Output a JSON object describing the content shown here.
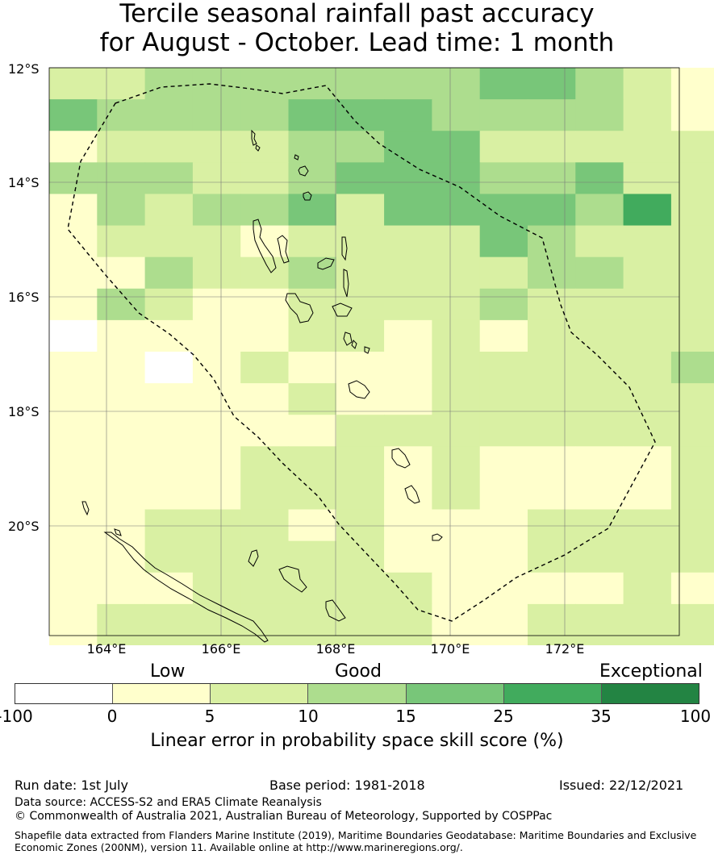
{
  "title_line1": "Tercile seasonal rainfall past accuracy",
  "title_line2": "for August - October. Lead time: 1 month",
  "map": {
    "lon_range": [
      163,
      174
    ],
    "lat_range": [
      -12,
      -21.9
    ],
    "lat_ticks": [
      "12°S",
      "14°S",
      "16°S",
      "18°S",
      "20°S"
    ],
    "lon_ticks": [
      "164°E",
      "166°E",
      "168°E",
      "170°E",
      "172°E"
    ],
    "grid_note": "Gridded skill score cells shaded by colour scale; dashed line marks maritime boundary"
  },
  "colorbar": {
    "categories": [
      "Low",
      "Good",
      "Exceptional"
    ],
    "tick_labels": [
      "-100",
      "0",
      "5",
      "10",
      "15",
      "25",
      "35",
      "100"
    ],
    "colors": [
      "#ffffff",
      "#ffffcc",
      "#d9f0a3",
      "#addd8e",
      "#78c679",
      "#41ab5d",
      "#238443"
    ],
    "title": "Linear error in probability space skill score (%)"
  },
  "footer": {
    "run_date": "Run date: 1st July",
    "base_period": "Base period: 1981-2018",
    "issued": "Issued: 22/12/2021",
    "data_source": "Data source: ACCESS-S2 and ERA5 Climate Reanalysis",
    "copyright": "© Commonwealth of Australia 2021, Australian Bureau of Meteorology, Supported by COSPPac",
    "shapefile_line1": "Shapefile data extracted from Flanders Marine Institute (2019), Maritime Boundaries Geodatabase: Maritime Boundaries and Exclusive",
    "shapefile_line2": "Economic Zones (200NM), version 11. Available online at http://www.marineregions.org/."
  }
}
